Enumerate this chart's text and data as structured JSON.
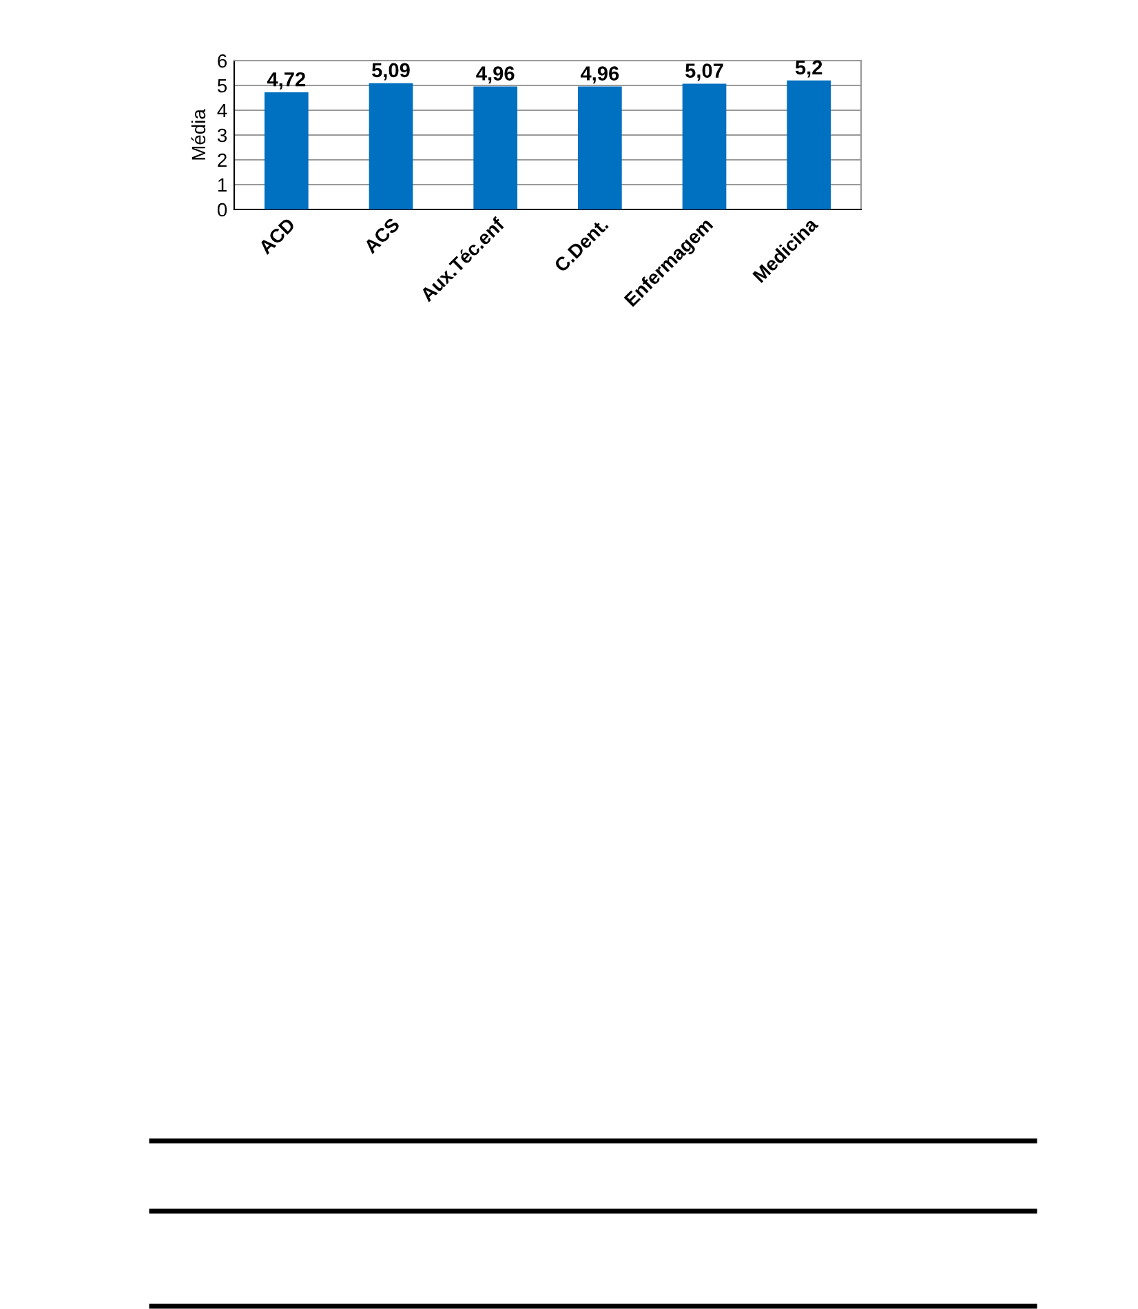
{
  "chart_data": {
    "type": "bar",
    "ylabel": "Média",
    "categories": [
      "ACD",
      "ACS",
      "Aux.Téc.enf",
      "C.Dent.",
      "Enfermagem",
      "Medicina"
    ],
    "values": [
      4.72,
      5.09,
      4.96,
      4.96,
      5.07,
      5.2
    ],
    "value_labels": [
      "4,72",
      "5,09",
      "4,96",
      "4,96",
      "5,07",
      "5,2"
    ],
    "color": "#0070c0",
    "ylim": [
      0,
      6
    ],
    "yticks": [
      0,
      1,
      2,
      3,
      4,
      5,
      6
    ],
    "grid": "y"
  }
}
